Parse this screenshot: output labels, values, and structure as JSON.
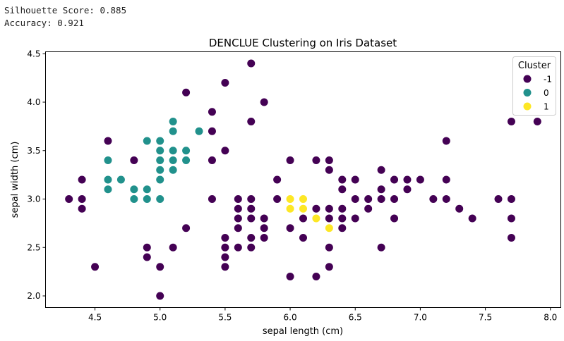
{
  "console": {
    "line1": "Silhouette Score: 0.885",
    "line2": "Accuracy: 0.921"
  },
  "chart_data": {
    "type": "scatter",
    "title": "DENCLUE Clustering on Iris Dataset",
    "xlabel": "sepal length (cm)",
    "ylabel": "sepal width (cm)",
    "xlim": [
      4.12,
      8.08
    ],
    "ylim": [
      1.88,
      4.52
    ],
    "xticks": [
      "4.5",
      "5.0",
      "5.5",
      "6.0",
      "6.5",
      "7.0",
      "7.5",
      "8.0"
    ],
    "yticks": [
      "2.0",
      "2.5",
      "3.0",
      "3.5",
      "4.0",
      "4.5"
    ],
    "grid": false,
    "legend": {
      "title": "Cluster",
      "position": "top-right"
    },
    "series": [
      {
        "name": "-1",
        "color": "#440154",
        "points": [
          [
            5.7,
            4.4
          ],
          [
            5.5,
            4.2
          ],
          [
            5.2,
            4.1
          ],
          [
            5.8,
            4.0
          ],
          [
            5.4,
            3.9
          ],
          [
            5.7,
            3.8
          ],
          [
            7.7,
            3.8
          ],
          [
            7.9,
            3.8
          ],
          [
            5.4,
            3.7
          ],
          [
            4.6,
            3.6
          ],
          [
            7.2,
            3.6
          ],
          [
            5.5,
            3.5
          ],
          [
            4.8,
            3.4
          ],
          [
            5.4,
            3.4
          ],
          [
            6.0,
            3.4
          ],
          [
            6.2,
            3.4
          ],
          [
            6.3,
            3.4
          ],
          [
            6.3,
            3.3
          ],
          [
            6.7,
            3.3
          ],
          [
            4.4,
            3.2
          ],
          [
            5.9,
            3.2
          ],
          [
            6.4,
            3.2
          ],
          [
            6.5,
            3.2
          ],
          [
            6.8,
            3.2
          ],
          [
            6.9,
            3.2
          ],
          [
            7.0,
            3.2
          ],
          [
            7.2,
            3.2
          ],
          [
            6.4,
            3.1
          ],
          [
            6.7,
            3.1
          ],
          [
            6.9,
            3.1
          ],
          [
            4.3,
            3.0
          ],
          [
            4.4,
            3.0
          ],
          [
            5.4,
            3.0
          ],
          [
            5.6,
            3.0
          ],
          [
            5.7,
            3.0
          ],
          [
            5.9,
            3.0
          ],
          [
            6.5,
            3.0
          ],
          [
            6.6,
            3.0
          ],
          [
            6.7,
            3.0
          ],
          [
            6.8,
            3.0
          ],
          [
            7.1,
            3.0
          ],
          [
            7.2,
            3.0
          ],
          [
            7.6,
            3.0
          ],
          [
            7.7,
            3.0
          ],
          [
            4.4,
            2.9
          ],
          [
            5.6,
            2.9
          ],
          [
            5.7,
            2.9
          ],
          [
            6.2,
            2.9
          ],
          [
            6.3,
            2.9
          ],
          [
            6.4,
            2.9
          ],
          [
            6.6,
            2.9
          ],
          [
            7.3,
            2.9
          ],
          [
            5.6,
            2.8
          ],
          [
            5.7,
            2.8
          ],
          [
            5.8,
            2.8
          ],
          [
            6.1,
            2.8
          ],
          [
            6.3,
            2.8
          ],
          [
            6.4,
            2.8
          ],
          [
            6.5,
            2.8
          ],
          [
            6.8,
            2.8
          ],
          [
            7.4,
            2.8
          ],
          [
            7.7,
            2.8
          ],
          [
            5.2,
            2.7
          ],
          [
            5.6,
            2.7
          ],
          [
            5.8,
            2.7
          ],
          [
            6.0,
            2.7
          ],
          [
            6.4,
            2.7
          ],
          [
            5.5,
            2.6
          ],
          [
            5.7,
            2.6
          ],
          [
            5.8,
            2.6
          ],
          [
            6.1,
            2.6
          ],
          [
            7.7,
            2.6
          ],
          [
            4.9,
            2.5
          ],
          [
            5.1,
            2.5
          ],
          [
            5.5,
            2.5
          ],
          [
            5.6,
            2.5
          ],
          [
            5.7,
            2.5
          ],
          [
            6.3,
            2.5
          ],
          [
            6.7,
            2.5
          ],
          [
            4.9,
            2.4
          ],
          [
            5.5,
            2.4
          ],
          [
            4.5,
            2.3
          ],
          [
            5.0,
            2.3
          ],
          [
            5.5,
            2.3
          ],
          [
            6.3,
            2.3
          ],
          [
            6.0,
            2.2
          ],
          [
            6.2,
            2.2
          ],
          [
            5.0,
            2.0
          ]
        ]
      },
      {
        "name": "0",
        "color": "#21918c",
        "points": [
          [
            5.1,
            3.8
          ],
          [
            5.1,
            3.7
          ],
          [
            5.3,
            3.7
          ],
          [
            4.9,
            3.6
          ],
          [
            5.0,
            3.6
          ],
          [
            5.0,
            3.5
          ],
          [
            5.1,
            3.5
          ],
          [
            5.2,
            3.5
          ],
          [
            4.6,
            3.4
          ],
          [
            5.0,
            3.4
          ],
          [
            5.1,
            3.4
          ],
          [
            5.2,
            3.4
          ],
          [
            5.0,
            3.3
          ],
          [
            5.1,
            3.3
          ],
          [
            4.6,
            3.2
          ],
          [
            4.7,
            3.2
          ],
          [
            5.0,
            3.2
          ],
          [
            4.6,
            3.1
          ],
          [
            4.8,
            3.1
          ],
          [
            4.9,
            3.1
          ],
          [
            4.8,
            3.0
          ],
          [
            4.9,
            3.0
          ],
          [
            5.0,
            3.0
          ]
        ]
      },
      {
        "name": "1",
        "color": "#fde725",
        "points": [
          [
            6.0,
            3.0
          ],
          [
            6.1,
            3.0
          ],
          [
            6.0,
            2.9
          ],
          [
            6.1,
            2.9
          ],
          [
            6.2,
            2.8
          ],
          [
            6.3,
            2.7
          ]
        ]
      }
    ]
  }
}
